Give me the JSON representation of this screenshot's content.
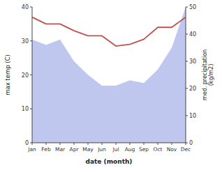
{
  "chart_data": {
    "type": "line",
    "categories": [
      "Jan",
      "Feb",
      "Mar",
      "Apr",
      "May",
      "Jun",
      "Jul",
      "Aug",
      "Sep",
      "Oct",
      "Nov",
      "Dec"
    ],
    "xlabel": "date (month)",
    "ylabel": "max temp (C)",
    "y2label": "med. precipitation\n(kg/m2)",
    "series": [
      {
        "type": "area",
        "axis": "y2",
        "color": "#aab4e8",
        "values": [
          38,
          36,
          38,
          30,
          25,
          21,
          21,
          23,
          22,
          27,
          35,
          50
        ]
      },
      {
        "type": "line",
        "color": "#c0504d",
        "values": [
          37,
          35,
          35,
          33,
          31.5,
          31.5,
          28.5,
          29,
          30.5,
          34,
          34,
          37
        ]
      }
    ],
    "ylim": [
      0,
      40
    ],
    "yticks": [
      0,
      10,
      20,
      30,
      40
    ],
    "y2lim": [
      0,
      50
    ],
    "y2ticks": [
      0,
      10,
      20,
      30,
      40,
      50
    ],
    "grid": false
  }
}
